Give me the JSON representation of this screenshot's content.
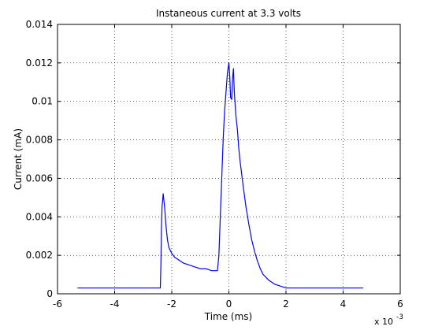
{
  "chart_data": {
    "type": "line",
    "title": "Instaneous current at 3.3 volts",
    "xlabel": "Time (ms)",
    "ylabel": "Current (mA)",
    "x_exponent_label": "x 10",
    "x_exponent_power": "-3",
    "xlim": [
      -6,
      6
    ],
    "ylim": [
      0,
      0.014
    ],
    "xticks": [
      -6,
      -4,
      -2,
      0,
      2,
      4,
      6
    ],
    "xtick_labels": [
      "-6",
      "-4",
      "-2",
      "0",
      "2",
      "4",
      "6"
    ],
    "yticks": [
      0,
      0.002,
      0.004,
      0.006,
      0.008,
      0.01,
      0.012,
      0.014
    ],
    "ytick_labels": [
      "0",
      "0.002",
      "0.004",
      "0.006",
      "0.008",
      "0.01",
      "0.012",
      "0.014"
    ],
    "grid": true,
    "grid_style": "dotted",
    "line_color": "#0000ff",
    "series": [
      {
        "x": [
          -5.3,
          -5.0,
          -4.6,
          -4.2,
          -3.8,
          -3.4,
          -3.0,
          -2.6,
          -2.4,
          -2.38,
          -2.36,
          -2.34,
          -2.3,
          -2.25,
          -2.2,
          -2.15,
          -2.1,
          -2.0,
          -1.9,
          -1.8,
          -1.6,
          -1.4,
          -1.2,
          -1.0,
          -0.8,
          -0.6,
          -0.4,
          -0.35,
          -0.3,
          -0.25,
          -0.2,
          -0.15,
          -0.1,
          -0.05,
          0.0,
          0.03,
          0.06,
          0.1,
          0.13,
          0.16,
          0.19,
          0.22,
          0.25,
          0.3,
          0.35,
          0.4,
          0.5,
          0.6,
          0.7,
          0.8,
          0.9,
          1.0,
          1.1,
          1.2,
          1.4,
          1.6,
          1.8,
          2.0,
          2.4,
          2.8,
          3.2,
          3.6,
          4.0,
          4.4,
          4.7
        ],
        "y": [
          0.0003,
          0.0003,
          0.0003,
          0.0003,
          0.0003,
          0.0003,
          0.0003,
          0.0003,
          0.0003,
          0.0015,
          0.0035,
          0.0045,
          0.0052,
          0.0045,
          0.0035,
          0.0028,
          0.0024,
          0.0021,
          0.0019,
          0.0018,
          0.0016,
          0.0015,
          0.0014,
          0.0013,
          0.0013,
          0.0012,
          0.0012,
          0.002,
          0.004,
          0.006,
          0.008,
          0.0095,
          0.0105,
          0.0115,
          0.012,
          0.0113,
          0.0102,
          0.0101,
          0.0112,
          0.0117,
          0.0105,
          0.0098,
          0.0092,
          0.0085,
          0.0075,
          0.0068,
          0.0056,
          0.0045,
          0.0036,
          0.0028,
          0.0022,
          0.0017,
          0.0013,
          0.001,
          0.0007,
          0.0005,
          0.0004,
          0.0003,
          0.0003,
          0.0003,
          0.0003,
          0.0003,
          0.0003,
          0.0003,
          0.0003
        ]
      }
    ]
  }
}
